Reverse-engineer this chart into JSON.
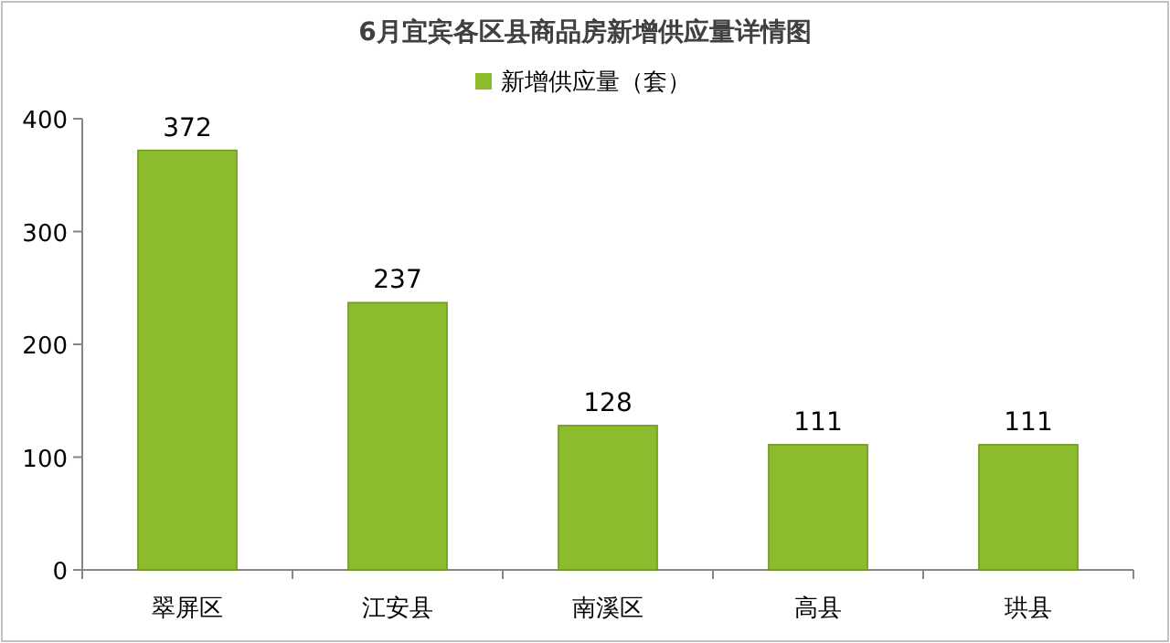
{
  "chart_data": {
    "type": "bar",
    "title": "6月宜宾各区县商品房新增供应量详情图",
    "categories": [
      "翠屏区",
      "江安县",
      "南溪区",
      "高县",
      "珙县"
    ],
    "series": [
      {
        "name": "新增供应量（套）",
        "color": "#8dbb2e",
        "values": [
          372,
          237,
          128,
          111,
          111
        ]
      }
    ],
    "ylim": [
      0,
      400
    ],
    "yticks": [
      0,
      100,
      200,
      300,
      400
    ],
    "data_labels": true,
    "legend": "top"
  }
}
